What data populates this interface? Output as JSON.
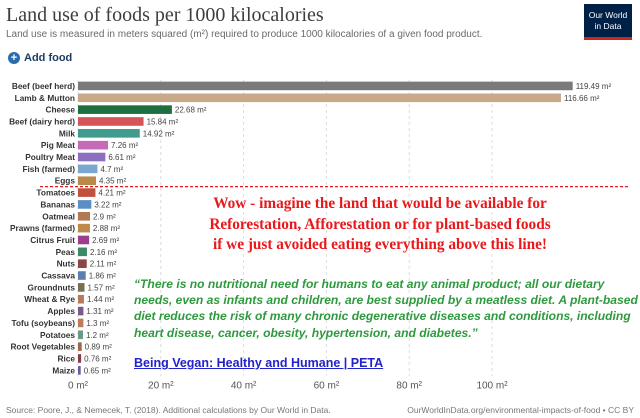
{
  "header": {
    "title": "Land use of foods per 1000 kilocalories",
    "subtitle": "Land use is measured in meters squared (m²) required to produce 1000 kilocalories of a given food product.",
    "logo_line1": "Our World",
    "logo_line2": "in Data"
  },
  "controls": {
    "add_food_label": "Add food"
  },
  "chart_data": {
    "type": "bar",
    "orientation": "horizontal",
    "unit": "m²",
    "categories": [
      "Beef (beef herd)",
      "Lamb & Mutton",
      "Cheese",
      "Beef (dairy herd)",
      "Milk",
      "Pig Meat",
      "Poultry Meat",
      "Fish (farmed)",
      "Eggs",
      "Tomatoes",
      "Bananas",
      "Oatmeal",
      "Prawns (farmed)",
      "Citrus Fruit",
      "Peas",
      "Nuts",
      "Cassava",
      "Groundnuts",
      "Wheat & Rye",
      "Apples",
      "Tofu (soybeans)",
      "Potatoes",
      "Root Vegetables",
      "Rice",
      "Maize"
    ],
    "values": [
      119.49,
      116.66,
      22.68,
      15.84,
      14.92,
      7.26,
      6.61,
      4.7,
      4.35,
      4.21,
      3.22,
      2.9,
      2.88,
      2.69,
      2.16,
      2.11,
      1.86,
      1.57,
      1.44,
      1.31,
      1.3,
      1.2,
      0.89,
      0.76,
      0.65
    ],
    "value_labels": [
      "119.49 m²",
      "116.66 m²",
      "22.68 m²",
      "15.84 m²",
      "14.92 m²",
      "7.26 m²",
      "6.61 m²",
      "4.7 m²",
      "4.35 m²",
      "4.21 m²",
      "3.22 m²",
      "2.9 m²",
      "2.88 m²",
      "2.69 m²",
      "2.16 m²",
      "2.11 m²",
      "1.86 m²",
      "1.57 m²",
      "1.44 m²",
      "1.31 m²",
      "1.3 m²",
      "1.2 m²",
      "0.89 m²",
      "0.76 m²",
      "0.65 m²"
    ],
    "colors": [
      "#7a7a7a",
      "#c9a988",
      "#1e6f3f",
      "#d4545a",
      "#3f9b8e",
      "#c46ab6",
      "#8d6fc1",
      "#7aa7d2",
      "#b98a4c",
      "#c1503b",
      "#5a8fc4",
      "#b07a52",
      "#bf8a4a",
      "#9b3e8e",
      "#3a8a66",
      "#8c4646",
      "#5b7fb0",
      "#7a6e52",
      "#b87a5c",
      "#7a5a8a",
      "#c07a5a",
      "#6a9a8a",
      "#9a6a4a",
      "#8a3a4a",
      "#6a5aa0"
    ],
    "xticks": [
      0,
      20,
      40,
      60,
      80,
      100
    ],
    "xtick_labels": [
      "0 m²",
      "20 m²",
      "40 m²",
      "60 m²",
      "80 m²",
      "100 m²"
    ],
    "xlim": [
      0,
      120
    ],
    "grid": "vertical dashed",
    "divider_after": "Eggs"
  },
  "annotation": {
    "red_lines": [
      "Wow - imagine the land that would be available for",
      "Reforestation, Afforestation or for plant-based foods",
      "if we just avoided eating everything above this line!"
    ],
    "quote": "“There is no nutritional need for humans to eat any animal product; all our dietary needs, even as infants and children, are best supplied by a meatless diet.  A plant-based diet reduces the risk of many chronic degenerative diseases and conditions, including heart disease, cancer, obesity, hypertension, and diabetes.”",
    "link": "Being Vegan: Healthy and Humane | PETA"
  },
  "footer": {
    "source": "Source: Poore, J., & Nemecek, T. (2018). Additional calculations by Our World in Data.",
    "url": "OurWorldInData.org/environmental-impacts-of-food • CC BY"
  }
}
